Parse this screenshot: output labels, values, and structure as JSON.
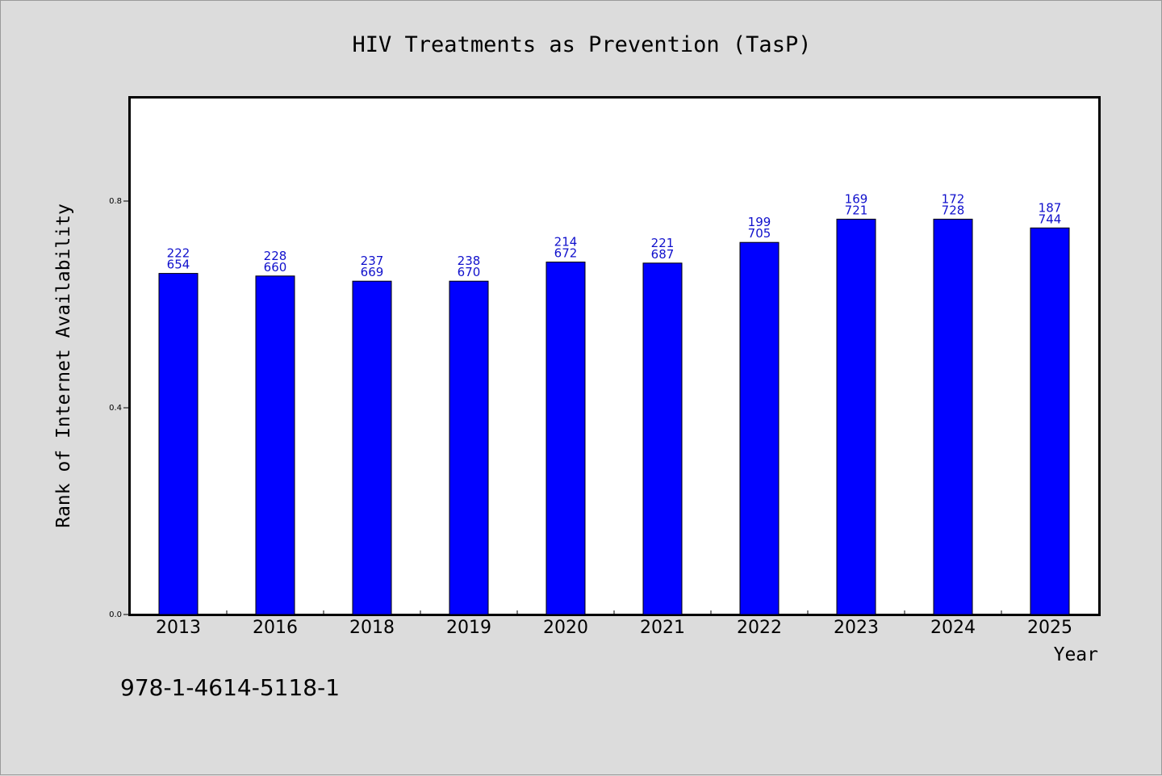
{
  "chart_data": {
    "type": "bar",
    "title": "HIV Treatments as Prevention (TasP)",
    "xlabel": "Year",
    "ylabel": "Rank of Internet Availability",
    "categories": [
      "2013",
      "2016",
      "2018",
      "2019",
      "2020",
      "2021",
      "2022",
      "2023",
      "2024",
      "2025"
    ],
    "series": [
      {
        "values": [
          0.66,
          0.655,
          0.645,
          0.645,
          0.682,
          0.68,
          0.72,
          0.765,
          0.765,
          0.748
        ]
      }
    ],
    "data_labels_top": [
      "222",
      "228",
      "237",
      "238",
      "214",
      "221",
      "199",
      "169",
      "172",
      "187"
    ],
    "data_labels_bottom": [
      "654",
      "660",
      "669",
      "670",
      "672",
      "687",
      "705",
      "721",
      "728",
      "744"
    ],
    "yticks": [
      "0.0",
      "0.4",
      "0.8"
    ],
    "ylim": [
      0,
      1.0
    ],
    "grid": false,
    "colors": {
      "bar": "#0000ff",
      "data_label": "#1010cc",
      "background": "#dcdcdc",
      "plot_background": "#ffffff"
    }
  },
  "footnote": "978-1-4614-5118-1"
}
